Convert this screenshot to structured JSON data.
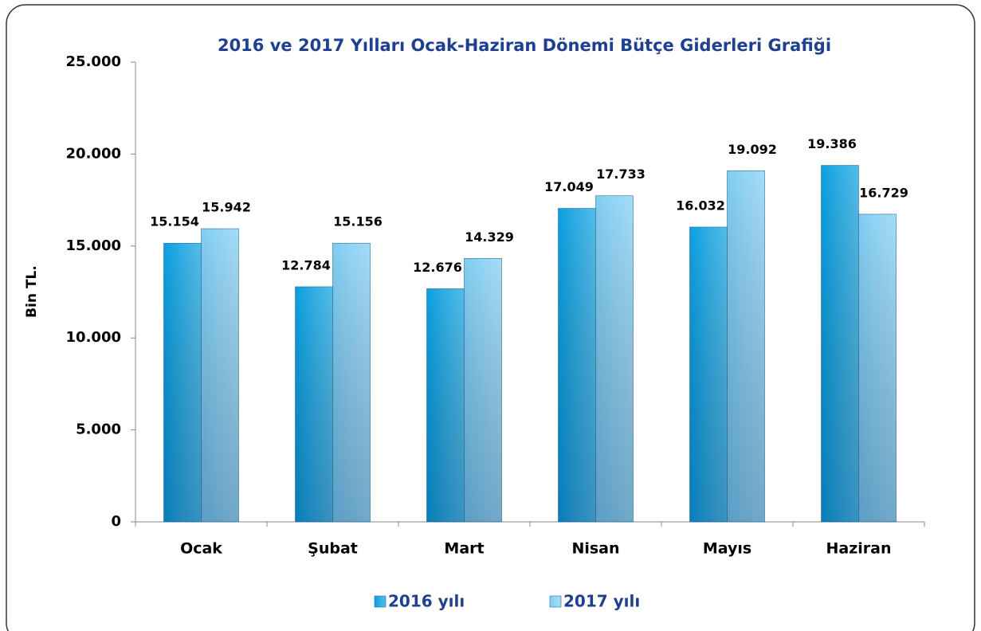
{
  "chart_data": {
    "type": "bar",
    "title": "2016 ve 2017 Yılları Ocak-Haziran Dönemi Bütçe Giderleri Grafiği",
    "y_label": "Bin TL.",
    "categories": [
      "Ocak",
      "Şubat",
      "Mart",
      "Nisan",
      "Mayıs",
      "Haziran"
    ],
    "series": [
      {
        "name": "2016 yılı",
        "color": "#0a9fe0",
        "values": [
          15154,
          12784,
          12676,
          17049,
          16032,
          19386
        ],
        "value_labels": [
          "15.154",
          "12.784",
          "12.676",
          "17.049",
          "16.032",
          "19.386"
        ]
      },
      {
        "name": "2017 yılı",
        "color": "#7fcdf3",
        "values": [
          15942,
          15156,
          14329,
          17733,
          19092,
          16729
        ],
        "value_labels": [
          "15.942",
          "15.156",
          "14.329",
          "17.733",
          "19.092",
          "16.729"
        ]
      }
    ],
    "ylim": [
      0,
      25000
    ],
    "yticks": [
      0,
      {
        "value": 5000,
        "label": "5.000"
      },
      {
        "value": 10000,
        "label": "10.000"
      },
      {
        "value": 15000,
        "label": "15.000"
      },
      {
        "value": 20000,
        "label": "20.000"
      },
      {
        "value": 25000,
        "label": "25.000"
      }
    ],
    "legend": "bottom"
  }
}
